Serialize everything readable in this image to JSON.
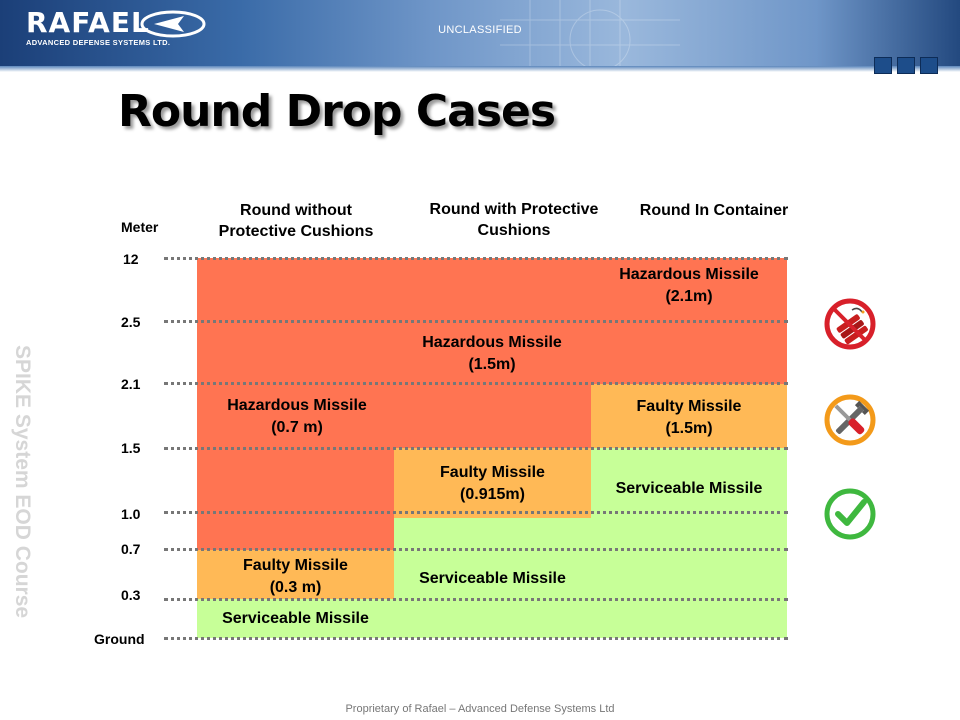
{
  "header": {
    "logo_word": "RAFAEL",
    "logo_sub": "ADVANCED DEFENSE SYSTEMS LTD.",
    "classification": "UNCLASSIFIED",
    "brand_color": "#1b3f78"
  },
  "title": "Round Drop Cases",
  "side_text": "SPIKE System  EOD Course",
  "axis": {
    "unit": "Meter",
    "ticks": [
      "12",
      "2.5",
      "2.1",
      "1.5",
      "1.0",
      "0.7",
      "0.3",
      "Ground"
    ]
  },
  "columns": [
    {
      "line1": "Round without",
      "line2": "Protective Cushions"
    },
    {
      "line1": "Round with Protective",
      "line2": "Cushions"
    },
    {
      "line1": "Round In Container",
      "line2": ""
    }
  ],
  "cells": {
    "c1_hazard": {
      "line1": "Hazardous Missile",
      "line2": "(0.7 m)"
    },
    "c1_faulty": {
      "line1": "Faulty Missile",
      "line2": "(0.3 m)"
    },
    "c1_service": {
      "line1": "Serviceable Missile"
    },
    "c2_hazard": {
      "line1": "Hazardous Missile",
      "line2": "(1.5m)"
    },
    "c2_faulty": {
      "line1": "Faulty Missile",
      "line2": "(0.915m)"
    },
    "c2_service": {
      "line1": "Serviceable Missile"
    },
    "c3_hazard": {
      "line1": "Hazardous Missile",
      "line2": "(2.1m)"
    },
    "c3_faulty": {
      "line1": "Faulty Missile",
      "line2": "(1.5m)"
    },
    "c3_service": {
      "line1": "Serviceable Missile"
    }
  },
  "colors": {
    "hazardous": "#ff7452",
    "faulty": "#ffb956",
    "serviceable": "#c7ff98"
  },
  "icons": [
    "dynamite-prohibited-icon",
    "tools-icon",
    "check-icon"
  ],
  "footer": "Proprietary of Rafael – Advanced Defense Systems Ltd"
}
